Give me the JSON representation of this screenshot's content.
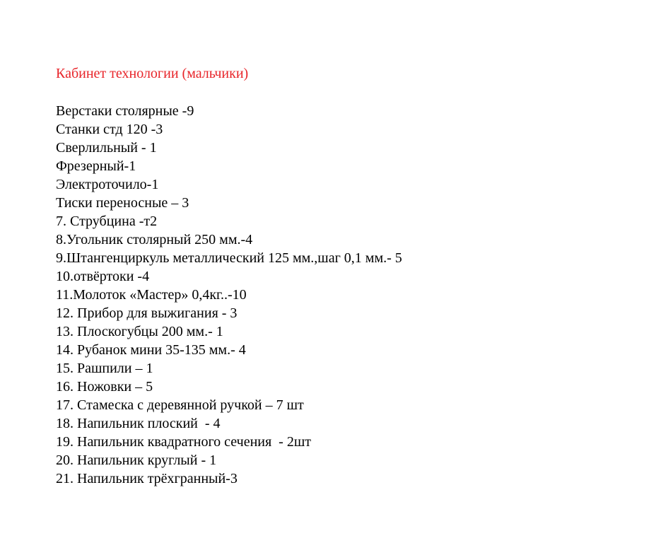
{
  "document": {
    "title": "Кабинет технологии (мальчики)",
    "title_color": "#e8252a",
    "items": [
      "Верстаки столярные -9",
      "Станки стд 120 -3",
      "Сверлильный - 1",
      "Фрезерный-1",
      "Электроточило-1",
      "Тиски переносные – 3",
      "7. Струбцина -т2",
      "8.Угольник столярный 250 мм.-4",
      "9.Штангенциркуль металлический 125 мм.,шаг 0,1 мм.- 5",
      "10.отвёртоки -4",
      "11.Молоток «Мастер» 0,4кг..-10",
      "12. Прибор для выжигания - 3",
      "13. Плоскогубцы 200 мм.- 1",
      "14. Рубанок мини 35-135 мм.- 4",
      "15. Рашпили – 1",
      "16. Ножовки – 5",
      "17. Стамеска с деревянной ручкой – 7 шт",
      "18. Напильник плоский  - 4",
      "19. Напильник квадратного сечения  - 2шт",
      "20. Напильник круглый - 1",
      "21. Напильник трёхгранный-3"
    ]
  }
}
